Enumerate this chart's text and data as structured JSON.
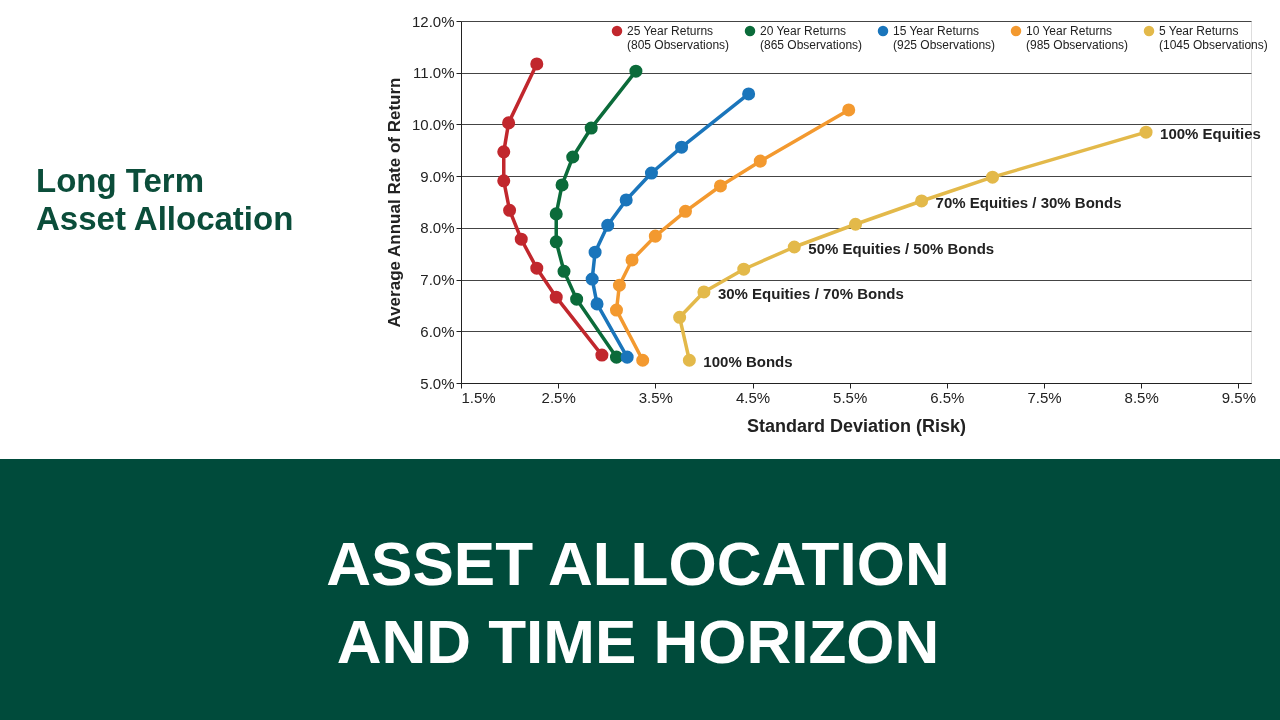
{
  "chart_data": {
    "type": "line",
    "title": "ASSET ALLOCATION AND TIME HORIZON",
    "subtitle": "Long Term\nAsset Allocation",
    "xlabel": "Standard Deviation (Risk)",
    "ylabel": "Average Annual Rate of Return",
    "xlim": [
      1.5,
      9.63
    ],
    "ylim": [
      5.0,
      12.0
    ],
    "xticks": [
      {
        "value": 1.5,
        "label": "1.5%"
      },
      {
        "value": 2.5,
        "label": "2.5%"
      },
      {
        "value": 3.5,
        "label": "3.5%"
      },
      {
        "value": 4.5,
        "label": "4.5%"
      },
      {
        "value": 5.5,
        "label": "5.5%"
      },
      {
        "value": 6.5,
        "label": "6.5%"
      },
      {
        "value": 7.5,
        "label": "7.5%"
      },
      {
        "value": 8.5,
        "label": "8.5%"
      },
      {
        "value": 9.5,
        "label": "9.5%"
      }
    ],
    "yticks": [
      {
        "value": 5.0,
        "label": "5.0%"
      },
      {
        "value": 6.0,
        "label": "6.0%"
      },
      {
        "value": 7.0,
        "label": "7.0%"
      },
      {
        "value": 8.0,
        "label": "8.0%"
      },
      {
        "value": 9.0,
        "label": "9.0%"
      },
      {
        "value": 10.0,
        "label": "10.0%"
      },
      {
        "value": 11.0,
        "label": "11.0%"
      },
      {
        "value": 12.0,
        "label": "12.0%"
      }
    ],
    "grid": "y",
    "legend": "top",
    "marker": "circle",
    "line_style": "solid",
    "series": [
      {
        "name": "25 Year Returns\n(805 Observations)",
        "color": "#c1272d",
        "x": [
          2.28,
          1.99,
          1.94,
          1.94,
          2.0,
          2.12,
          2.28,
          2.48,
          2.95
        ],
        "values": [
          11.17,
          10.03,
          9.47,
          8.91,
          8.34,
          7.78,
          7.22,
          6.66,
          5.54
        ]
      },
      {
        "name": "20 Year Returns\n(865 Observations)",
        "color": "#0b6b3a",
        "x": [
          3.3,
          2.84,
          2.65,
          2.54,
          2.48,
          2.48,
          2.56,
          2.69,
          3.1
        ],
        "values": [
          11.03,
          9.93,
          9.37,
          8.83,
          8.27,
          7.73,
          7.16,
          6.62,
          5.5
        ]
      },
      {
        "name": "15 Year Returns\n(925 Observations)",
        "color": "#1a75bb",
        "x": [
          4.46,
          3.77,
          3.46,
          3.2,
          3.01,
          2.88,
          2.85,
          2.9,
          3.21
        ],
        "values": [
          10.59,
          9.56,
          9.06,
          8.54,
          8.05,
          7.53,
          7.01,
          6.53,
          5.5
        ]
      },
      {
        "name": "10 Year Returns\n(985 Observations)",
        "color": "#f3992f",
        "x": [
          5.49,
          4.58,
          4.17,
          3.81,
          3.5,
          3.26,
          3.13,
          3.1,
          3.37
        ],
        "values": [
          10.28,
          9.29,
          8.81,
          8.32,
          7.84,
          7.38,
          6.89,
          6.41,
          5.44
        ]
      },
      {
        "name": "5 Year Returns\n(1045 Observations)",
        "color": "#e3b94a",
        "x": [
          8.55,
          6.97,
          6.24,
          5.56,
          4.93,
          4.41,
          4.0,
          3.75,
          3.85
        ],
        "values": [
          9.85,
          8.98,
          8.52,
          8.07,
          7.63,
          7.2,
          6.76,
          6.27,
          5.44
        ]
      }
    ],
    "annotations": [
      {
        "text": "100% Equities",
        "x": 8.55,
        "y": 9.85
      },
      {
        "text": "70% Equities / 30% Bonds",
        "x": 6.24,
        "y": 8.52
      },
      {
        "text": "50% Equities / 50% Bonds",
        "x": 4.93,
        "y": 7.63
      },
      {
        "text": "30% Equities / 70% Bonds",
        "x": 4.0,
        "y": 6.76
      },
      {
        "text": "100% Bonds",
        "x": 3.85,
        "y": 5.44
      }
    ]
  }
}
